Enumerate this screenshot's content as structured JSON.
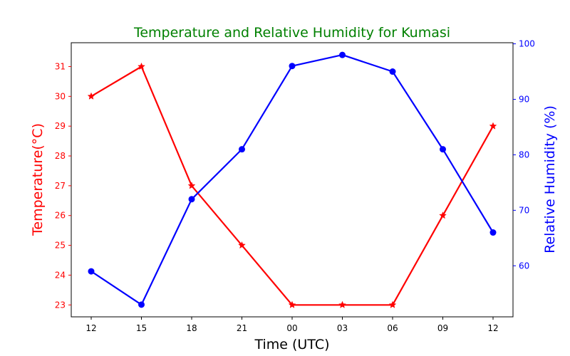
{
  "chart_data": {
    "type": "line",
    "title": "Temperature and Relative Humidity for Kumasi",
    "xlabel": "Time (UTC)",
    "ylabel_left": "Temperature(°C)",
    "ylabel_right": "Relative Humidity (%)",
    "categories": [
      "12",
      "15",
      "18",
      "21",
      "00",
      "03",
      "06",
      "09",
      "12"
    ],
    "left_ylim": [
      22.6,
      31.8
    ],
    "left_ticks": [
      23,
      24,
      25,
      26,
      27,
      28,
      29,
      30,
      31
    ],
    "right_ylim": [
      50.8,
      100.2
    ],
    "right_ticks": [
      60,
      70,
      80,
      90,
      100
    ],
    "grid": false,
    "series": [
      {
        "name": "Temperature",
        "axis": "left",
        "color": "#ff0000",
        "marker": "star",
        "values": [
          30,
          31,
          27,
          25,
          23,
          23,
          23,
          26,
          29
        ]
      },
      {
        "name": "Relative Humidity",
        "axis": "right",
        "color": "#0000ff",
        "marker": "circle",
        "values": [
          59,
          53,
          72,
          81,
          96,
          98,
          95,
          81,
          66
        ]
      }
    ],
    "colors": {
      "title": "#008000",
      "left_axis": "#ff0000",
      "right_axis": "#0000ff",
      "x_axis": "#000000"
    }
  }
}
